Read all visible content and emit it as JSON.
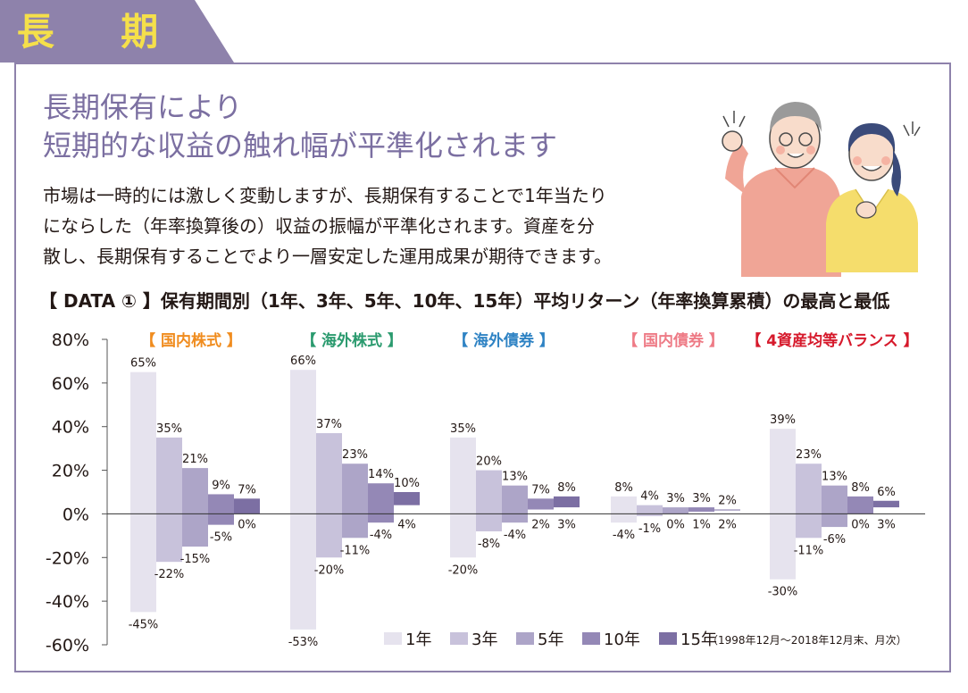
{
  "section": {
    "title": "長 期"
  },
  "headline": {
    "line1": "長期保有により",
    "line2": "短期的な収益の触れ幅が平準化されます"
  },
  "body": {
    "line1": "市場は一時的には激しく変動しますが、長期保有することで1年当たり",
    "line2": "にならした（年率換算後の）収益の振幅が平準化されます。資産を分",
    "line3": "散し、長期保有することでより一層安定した運用成果が期待できます。"
  },
  "data_title": "【 DATA ① 】保有期間別（1年、3年、5年、10年、15年）平均リターン（年率換算累積）の最高と最低",
  "colors": {
    "tab": "#8e82ab",
    "frame": "#8e82ab",
    "headline": "#7b6fa1",
    "series": [
      "#e6e3ee",
      "#c8c2db",
      "#ada5c8",
      "#9488b6",
      "#7c6fa3"
    ],
    "group_label": [
      "#f08c1e",
      "#2a9a6e",
      "#2f83c4",
      "#ee7b86",
      "#d6192b"
    ]
  },
  "chart_data": {
    "type": "bar",
    "title": "保有期間別（1年、3年、5年、10年、15年）平均リターン（年率換算累積）の最高と最低",
    "ylim": [
      -60,
      80
    ],
    "yticks": [
      "80%",
      "60%",
      "40%",
      "20%",
      "0%",
      "-20%",
      "-40%",
      "-60%"
    ],
    "yticks_values": [
      80,
      60,
      40,
      20,
      0,
      -20,
      -40,
      -60
    ],
    "categories": [
      "【 国内株式 】",
      "【 海外株式 】",
      "【 海外債券 】",
      "【 国内債券 】",
      "【 4資産均等バランス 】"
    ],
    "series": [
      {
        "name": "1年",
        "max": [
          65,
          66,
          35,
          8,
          39
        ],
        "min": [
          -45,
          -53,
          -20,
          -4,
          -30
        ],
        "max_label": [
          "65%",
          "66%",
          "35%",
          "8%",
          "39%"
        ],
        "min_label": [
          "-45%",
          "-53%",
          "-20%",
          "-4%",
          "-30%"
        ]
      },
      {
        "name": "3年",
        "max": [
          35,
          37,
          20,
          4,
          23
        ],
        "min": [
          -22,
          -20,
          -8,
          -1,
          -11
        ],
        "max_label": [
          "35%",
          "37%",
          "20%",
          "4%",
          "23%"
        ],
        "min_label": [
          "-22%",
          "-20%",
          "-8%",
          "-1%",
          "-11%"
        ]
      },
      {
        "name": "5年",
        "max": [
          21,
          23,
          13,
          3,
          13
        ],
        "min": [
          -15,
          -11,
          -4,
          0,
          -6
        ],
        "max_label": [
          "21%",
          "23%",
          "13%",
          "3%",
          "13%"
        ],
        "min_label": [
          "-15%",
          "-11%",
          "-4%",
          "0%",
          "-6%"
        ]
      },
      {
        "name": "10年",
        "max": [
          9,
          14,
          7,
          3,
          8
        ],
        "min": [
          -5,
          -4,
          2,
          1,
          0
        ],
        "max_label": [
          "9%",
          "14%",
          "7%",
          "3%",
          "8%"
        ],
        "min_label": [
          "-5%",
          "-4%",
          "2%",
          "1%",
          "0%"
        ]
      },
      {
        "name": "15年",
        "max": [
          7,
          10,
          8,
          2,
          6
        ],
        "min": [
          0,
          4,
          3,
          2,
          3
        ],
        "max_label": [
          "7%",
          "10%",
          "8%",
          "2%",
          "6%"
        ],
        "min_label": [
          "0%",
          "4%",
          "3%",
          "2%",
          "3%"
        ]
      }
    ],
    "legend_note": "（1998年12月〜2018年12月末、月次）",
    "legend_position": "bottom-right",
    "grid": false
  }
}
